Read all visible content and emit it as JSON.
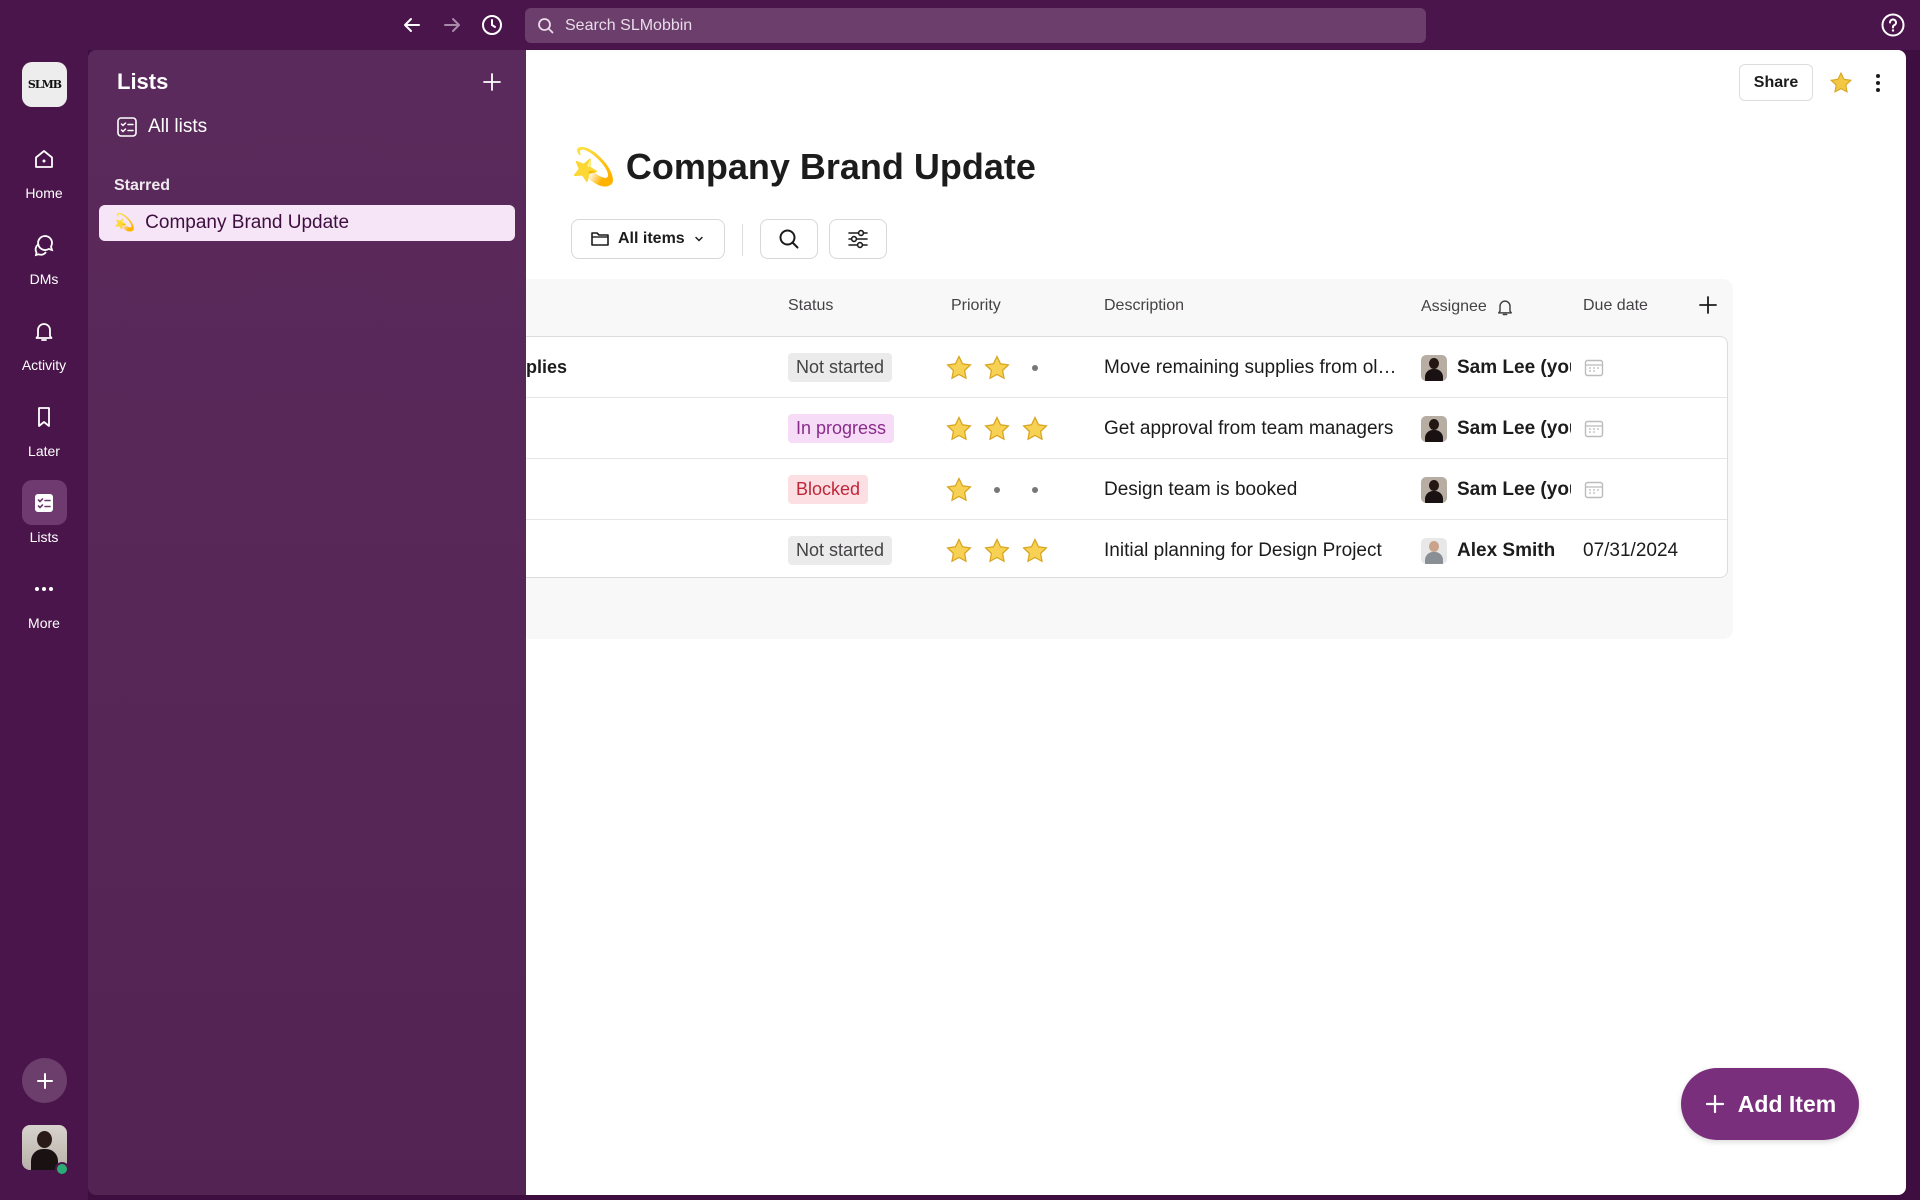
{
  "search": {
    "placeholder": "Search SLMobbin"
  },
  "workspace": {
    "logo_text": "SLMB"
  },
  "rail": {
    "items": [
      {
        "label": "Home"
      },
      {
        "label": "DMs"
      },
      {
        "label": "Activity"
      },
      {
        "label": "Later"
      },
      {
        "label": "Lists"
      },
      {
        "label": "More"
      }
    ]
  },
  "lists_panel": {
    "title": "Lists",
    "all_lists": "All lists",
    "starred_header": "Starred",
    "starred_items": [
      {
        "emoji": "💫",
        "label": "Company Brand Update"
      }
    ]
  },
  "header": {
    "share_label": "Share"
  },
  "page": {
    "emoji": "💫",
    "title": "Company Brand Update"
  },
  "toolbar": {
    "filter_label": "All items"
  },
  "table": {
    "columns": [
      "Status",
      "Priority",
      "Description",
      "Assignee",
      "Due date"
    ],
    "rows": [
      {
        "name": "plies",
        "status": "Not started",
        "priority": 2,
        "description": "Move remaining supplies from ol…",
        "assignee": "Sam Lee (you",
        "due": ""
      },
      {
        "name": "",
        "status": "In progress",
        "priority": 3,
        "description": "Get approval from team managers",
        "assignee": "Sam Lee (you",
        "due": ""
      },
      {
        "name": "",
        "status": "Blocked",
        "priority": 1,
        "description": "Design team is booked",
        "assignee": "Sam Lee (you",
        "due": ""
      },
      {
        "name": "",
        "status": "Not started",
        "priority": 3,
        "description": "Initial planning for Design Project",
        "assignee": "Alex Smith",
        "due": "07/31/2024"
      }
    ]
  },
  "fab": {
    "label": "Add Item"
  },
  "colors": {
    "brand": "#4a154b",
    "accent": "#7a2f7c",
    "star": "#f2c744"
  }
}
